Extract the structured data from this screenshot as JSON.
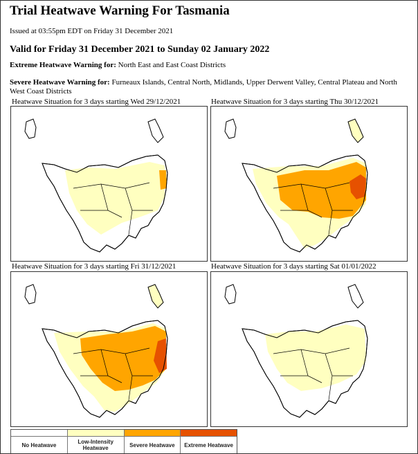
{
  "title": "Trial Heatwave Warning For Tasmania",
  "issued": "Issued at 03:55pm EDT on Friday 31 December 2021",
  "valid": "Valid for Friday 31 December 2021 to Sunday 02 January 2022",
  "extreme": {
    "label": "Extreme Heatwave Warning for:",
    "text": " North East and East Coast Districts"
  },
  "severe": {
    "label": "Severe Heatwave Warning for:",
    "text": " Furneaux Islands, Central North, Midlands, Upper Derwent Valley, Central Plateau and North West Coast Districts"
  },
  "colors": {
    "none": "#ffffff",
    "low": "#ffffc0",
    "severe": "#ffa500",
    "extreme": "#e65100"
  },
  "panels": [
    {
      "title": "Heatwave Situation for 3 days starting Wed 29/12/2021",
      "levels": [
        "low",
        "severe"
      ]
    },
    {
      "title": "Heatwave Situation for 3 days starting Thu 30/12/2021",
      "levels": [
        "low",
        "severe",
        "extreme"
      ]
    },
    {
      "title": "Heatwave Situation for 3 days starting Fri 31/12/2021",
      "levels": [
        "low",
        "severe",
        "extreme"
      ]
    },
    {
      "title": "Heatwave Situation for 3 days starting Sat 01/01/2022",
      "levels": [
        "low"
      ]
    }
  ],
  "legend": [
    {
      "label": "No Heatwave",
      "color": "#ffffff"
    },
    {
      "label": "Low-Intensity Heatwave",
      "color": "#ffffc0"
    },
    {
      "label": "Severe Heatwave",
      "color": "#ffa500"
    },
    {
      "label": "Extreme Heatwave",
      "color": "#e65100"
    }
  ]
}
